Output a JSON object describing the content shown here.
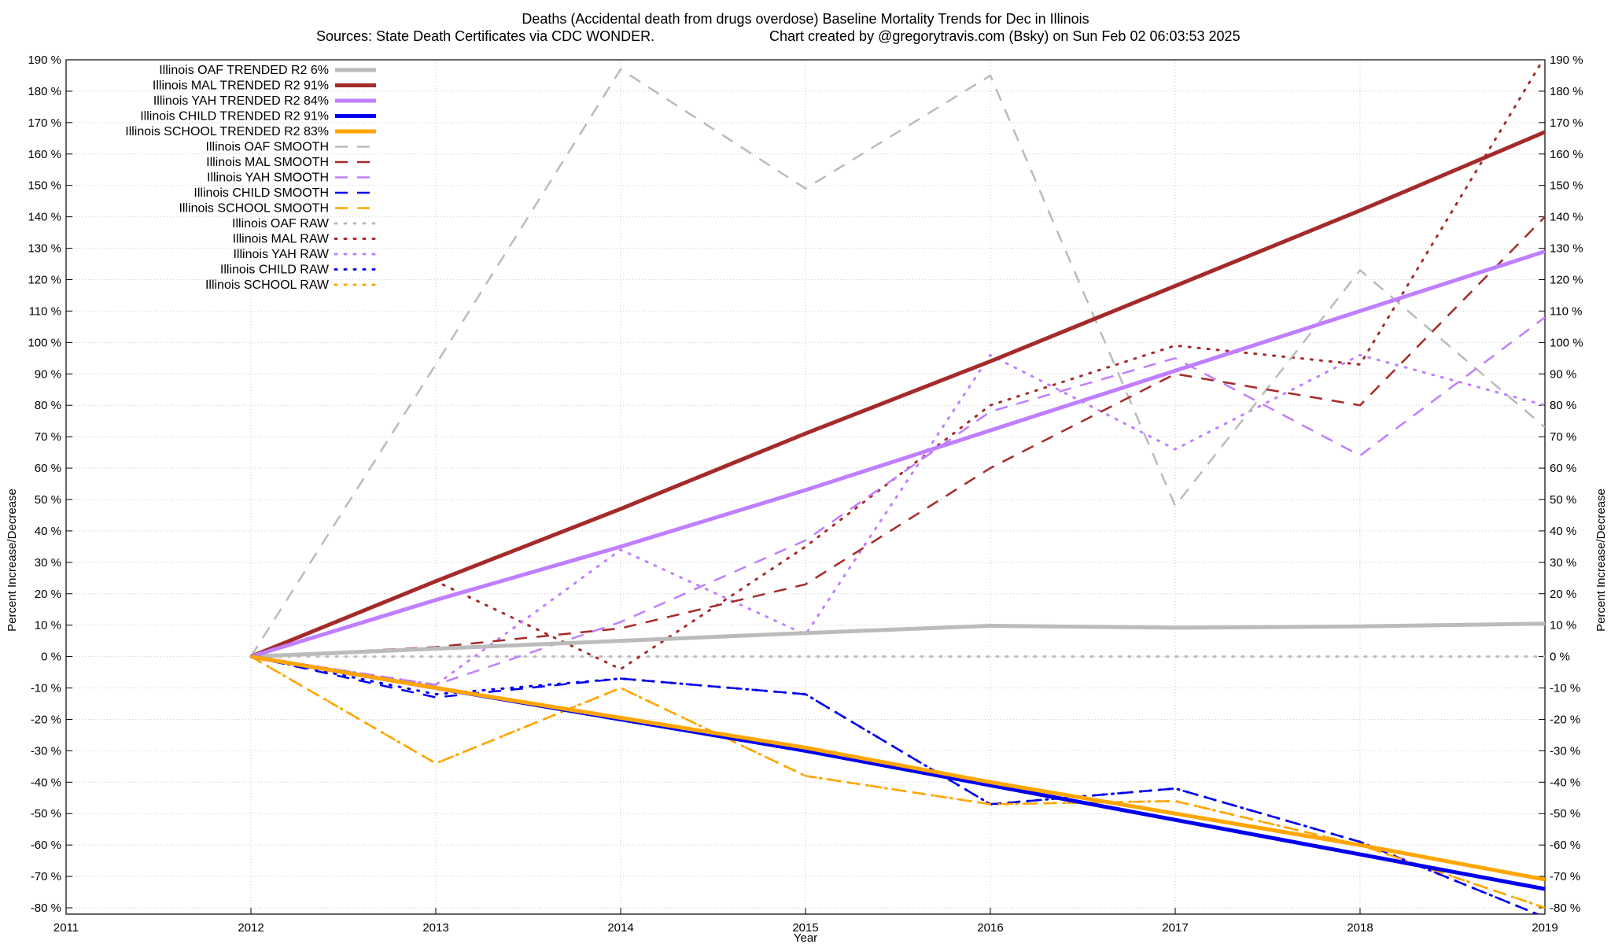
{
  "chart_data": {
    "type": "line",
    "title": "Deaths (Accidental death from drugs overdose)  Baseline Mortality Trends for Dec in Illinois",
    "subtitle_left": "Sources: State Death Certificates via CDC WONDER.",
    "subtitle_right": "Chart created by @gregorytravis.com (Bsky) on Sun Feb 02 06:03:53 2025",
    "xlabel": "Year",
    "ylabel": "Percent Increase/Decrease",
    "xlim": [
      2011,
      2019
    ],
    "ylim": [
      -82,
      190
    ],
    "x_ticks": [
      "2011",
      "2012",
      "2013",
      "2014",
      "2015",
      "2016",
      "2017",
      "2018",
      "2019"
    ],
    "y_ticks": [
      190,
      180,
      170,
      160,
      150,
      140,
      130,
      120,
      110,
      100,
      90,
      80,
      70,
      60,
      50,
      40,
      30,
      20,
      10,
      0,
      -10,
      -20,
      -30,
      -40,
      -50,
      -60,
      -70,
      -80
    ],
    "y_tick_suffix": " %",
    "grid": true,
    "legend_position": "top-left",
    "colors": {
      "oaf": "#bbbbbb",
      "mal": "#a52a2a",
      "yah": "#bf7fff",
      "child": "#0000ee",
      "school": "#ffa500"
    },
    "series": [
      {
        "name": "Illinois OAF TRENDED R2   6%",
        "key": "oaf",
        "style": "trend",
        "x": [
          2012,
          2013,
          2014,
          2015,
          2016,
          2017,
          2018,
          2019
        ],
        "values": [
          0,
          2.5,
          5,
          7.5,
          9.8,
          9.2,
          9.6,
          10.5
        ]
      },
      {
        "name": "Illinois MAL TRENDED R2  91%",
        "key": "mal",
        "style": "trend",
        "x": [
          2012,
          2013,
          2014,
          2015,
          2016,
          2017,
          2018,
          2019
        ],
        "values": [
          0,
          24,
          47,
          71,
          94,
          118,
          142,
          167
        ]
      },
      {
        "name": "Illinois YAH TRENDED R2  84%",
        "key": "yah",
        "style": "trend",
        "x": [
          2012,
          2013,
          2014,
          2015,
          2016,
          2017,
          2018,
          2019
        ],
        "values": [
          0,
          18,
          35,
          53,
          72,
          91,
          110,
          129
        ]
      },
      {
        "name": "Illinois CHILD TRENDED R2  91%",
        "key": "child",
        "style": "trend",
        "x": [
          2012,
          2013,
          2014,
          2015,
          2016,
          2017,
          2018,
          2019
        ],
        "values": [
          0,
          -10,
          -20,
          -30,
          -41,
          -52,
          -63,
          -74
        ]
      },
      {
        "name": "Illinois SCHOOL TRENDED R2  83%",
        "key": "school",
        "style": "trend",
        "x": [
          2012,
          2013,
          2014,
          2015,
          2016,
          2017,
          2018,
          2019
        ],
        "values": [
          0,
          -10,
          -19.5,
          -29,
          -40,
          -50,
          -60,
          -71
        ]
      },
      {
        "name": "Illinois OAF SMOOTH",
        "key": "oaf",
        "style": "smooth",
        "x": [
          2012,
          2013,
          2014,
          2015,
          2016,
          2017,
          2018,
          2019
        ],
        "values": [
          0,
          93,
          187,
          149,
          185,
          48,
          123,
          73
        ]
      },
      {
        "name": "Illinois MAL SMOOTH",
        "key": "mal",
        "style": "smooth",
        "x": [
          2012,
          2013,
          2014,
          2015,
          2016,
          2017,
          2018,
          2019
        ],
        "values": [
          0,
          3,
          9,
          23,
          60,
          90,
          80,
          140
        ]
      },
      {
        "name": "Illinois YAH SMOOTH",
        "key": "yah",
        "style": "smooth",
        "x": [
          2012,
          2013,
          2014,
          2015,
          2016,
          2017,
          2018,
          2019
        ],
        "values": [
          0,
          -9,
          11,
          37,
          78,
          95,
          64,
          108
        ]
      },
      {
        "name": "Illinois CHILD SMOOTH",
        "key": "child",
        "style": "smooth",
        "x": [
          2012,
          2013,
          2014,
          2015,
          2016,
          2017,
          2018,
          2019
        ],
        "values": [
          0,
          -13,
          -7,
          -12,
          -47,
          -42,
          -59,
          -83
        ]
      },
      {
        "name": "Illinois SCHOOL SMOOTH",
        "key": "school",
        "style": "smooth",
        "x": [
          2012,
          2013,
          2014,
          2015,
          2016,
          2017,
          2018,
          2019
        ],
        "values": [
          0,
          -34,
          -10,
          -38,
          -47,
          -46,
          -60,
          -80
        ]
      },
      {
        "name": "Illinois OAF RAW",
        "key": "oaf",
        "style": "raw",
        "x": [
          2012,
          2013,
          2014,
          2015,
          2016,
          2017,
          2018,
          2019
        ],
        "values": [
          0,
          0,
          0,
          0,
          0,
          0,
          0,
          0
        ]
      },
      {
        "name": "Illinois MAL RAW",
        "key": "mal",
        "style": "raw",
        "x": [
          2012,
          2013,
          2014,
          2015,
          2016,
          2017,
          2018,
          2019
        ],
        "values": [
          0,
          24,
          -4,
          35,
          80,
          99,
          93,
          191
        ]
      },
      {
        "name": "Illinois YAH RAW",
        "key": "yah",
        "style": "raw",
        "x": [
          2012,
          2013,
          2014,
          2015,
          2016,
          2017,
          2018,
          2019
        ],
        "values": [
          0,
          -9,
          34,
          7,
          96,
          66,
          96,
          80
        ]
      },
      {
        "name": "Illinois CHILD RAW",
        "key": "child",
        "style": "raw",
        "x": [
          2012,
          2013,
          2014,
          2015,
          2016,
          2017,
          2018,
          2019
        ],
        "values": [
          0,
          -12,
          -7,
          -12,
          -47,
          -42,
          -59,
          -83
        ]
      },
      {
        "name": "Illinois SCHOOL RAW",
        "key": "school",
        "style": "raw",
        "x": [
          2012,
          2013,
          2014,
          2015,
          2016,
          2017,
          2018,
          2019
        ],
        "values": [
          0,
          -34,
          -10,
          -38,
          -47,
          -46,
          -60,
          -80
        ]
      }
    ]
  }
}
